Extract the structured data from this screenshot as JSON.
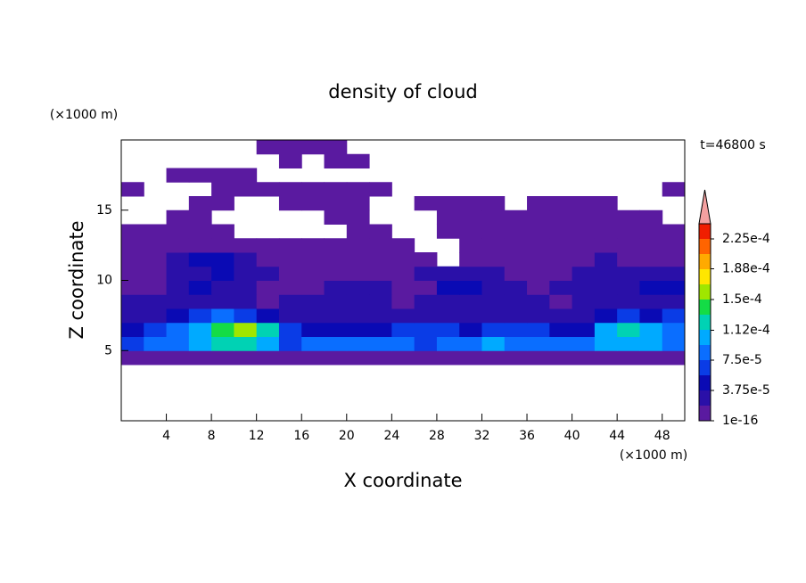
{
  "chart_data": {
    "type": "contour",
    "title": "density of cloud",
    "x_label": "X coordinate",
    "y_label": "Z coordinate",
    "x_unit": "(×1000 m)",
    "y_unit": "(×1000 m)",
    "time_label": "t=46800 s",
    "xlim": [
      0,
      50
    ],
    "ylim": [
      0,
      20
    ],
    "xticks": [
      4,
      8,
      12,
      16,
      20,
      24,
      28,
      32,
      36,
      40,
      44,
      48
    ],
    "yticks": [
      5,
      10,
      15
    ],
    "x": [
      1,
      3,
      5,
      7,
      9,
      11,
      13,
      15,
      17,
      19,
      21,
      23,
      25,
      27,
      29,
      31,
      33,
      35,
      37,
      39,
      41,
      43,
      45,
      47,
      49
    ],
    "y": [
      4.5,
      5.5,
      6.5,
      7.5,
      8.5,
      9.5,
      10.5,
      11.5,
      12.5,
      13.5,
      14.5,
      15.5,
      16.5,
      17.5,
      18.5,
      19.5
    ],
    "values": [
      [
        1e-16,
        1e-16,
        1e-16,
        1e-16,
        1e-16,
        1e-16,
        1e-16,
        1e-16,
        1e-16,
        1e-16,
        1e-16,
        1e-16,
        1e-16,
        1e-16,
        1e-16,
        1e-16,
        1e-16,
        1e-16,
        1e-16,
        1e-16,
        1e-16,
        1e-16,
        1e-16,
        1e-16,
        1e-16
      ],
      [
        5.7e-05,
        7.6e-05,
        7.6e-05,
        9.5e-05,
        0.000114,
        0.000114,
        9.5e-05,
        5.7e-05,
        7.6e-05,
        7.6e-05,
        7.6e-05,
        7.6e-05,
        7.6e-05,
        5.7e-05,
        7.6e-05,
        7.6e-05,
        9.5e-05,
        7.6e-05,
        7.6e-05,
        7.6e-05,
        7.6e-05,
        9.5e-05,
        9.5e-05,
        9.5e-05,
        7.6e-05
      ],
      [
        3.8e-05,
        5.7e-05,
        7.6e-05,
        9.5e-05,
        0.000133,
        0.000152,
        0.000114,
        5.7e-05,
        3.8e-05,
        3.8e-05,
        3.8e-05,
        3.8e-05,
        5.7e-05,
        5.7e-05,
        5.7e-05,
        3.8e-05,
        5.7e-05,
        5.7e-05,
        5.7e-05,
        3.8e-05,
        3.8e-05,
        9.5e-05,
        0.000114,
        9.5e-05,
        7.6e-05
      ],
      [
        1.9e-05,
        1.9e-05,
        3.8e-05,
        5.7e-05,
        7.6e-05,
        5.7e-05,
        3.8e-05,
        1.9e-05,
        1.9e-05,
        1.9e-05,
        1.9e-05,
        1.9e-05,
        1.9e-05,
        1.9e-05,
        1.9e-05,
        1.9e-05,
        1.9e-05,
        1.9e-05,
        1.9e-05,
        1.9e-05,
        1.9e-05,
        3.8e-05,
        5.7e-05,
        3.8e-05,
        5.7e-05
      ],
      [
        1.9e-05,
        1.9e-05,
        1.9e-05,
        1.9e-05,
        1.9e-05,
        1.9e-05,
        1e-16,
        1.9e-05,
        1.9e-05,
        1.9e-05,
        1.9e-05,
        1.9e-05,
        1e-16,
        1.9e-05,
        1.9e-05,
        1.9e-05,
        1.9e-05,
        1.9e-05,
        1.9e-05,
        1e-16,
        1.9e-05,
        1.9e-05,
        1.9e-05,
        1.9e-05,
        1.9e-05
      ],
      [
        1e-16,
        1e-16,
        1.9e-05,
        3.8e-05,
        1.9e-05,
        1.9e-05,
        1e-16,
        1e-16,
        1e-16,
        1.9e-05,
        1.9e-05,
        1.9e-05,
        1e-16,
        1e-16,
        3.8e-05,
        3.8e-05,
        1.9e-05,
        1.9e-05,
        1e-16,
        1.9e-05,
        1.9e-05,
        1.9e-05,
        1.9e-05,
        3.8e-05,
        3.8e-05
      ],
      [
        1e-16,
        1e-16,
        1.9e-05,
        1.9e-05,
        3.8e-05,
        1.9e-05,
        1.9e-05,
        1e-16,
        1e-16,
        1e-16,
        1e-16,
        1e-16,
        1e-16,
        1.9e-05,
        1.9e-05,
        1.9e-05,
        1.9e-05,
        1e-16,
        1e-16,
        1e-16,
        1.9e-05,
        1.9e-05,
        1.9e-05,
        1.9e-05,
        1.9e-05
      ],
      [
        1e-16,
        1e-16,
        1.9e-05,
        3.8e-05,
        3.8e-05,
        1.9e-05,
        1e-16,
        1e-16,
        1e-16,
        1e-16,
        1e-16,
        1e-16,
        1e-16,
        1e-16,
        null,
        1e-16,
        1e-16,
        1e-16,
        1e-16,
        1e-16,
        1e-16,
        1.9e-05,
        1e-16,
        1e-16,
        1e-16
      ],
      [
        1e-16,
        1e-16,
        1e-16,
        1e-16,
        1e-16,
        1e-16,
        1e-16,
        1e-16,
        1e-16,
        1e-16,
        1e-16,
        1e-16,
        1e-16,
        null,
        null,
        1e-16,
        1e-16,
        1e-16,
        1e-16,
        1e-16,
        1e-16,
        1e-16,
        1e-16,
        1e-16,
        1e-16
      ],
      [
        1e-16,
        1e-16,
        1e-16,
        1e-16,
        1e-16,
        null,
        null,
        null,
        null,
        null,
        1e-16,
        1e-16,
        null,
        null,
        1e-16,
        1e-16,
        1e-16,
        1e-16,
        1e-16,
        1e-16,
        1e-16,
        1e-16,
        1e-16,
        1e-16,
        1e-16
      ],
      [
        null,
        null,
        1e-16,
        1e-16,
        null,
        null,
        null,
        null,
        null,
        1e-16,
        1e-16,
        null,
        null,
        null,
        1e-16,
        1e-16,
        1e-16,
        1e-16,
        1e-16,
        1e-16,
        1e-16,
        1e-16,
        1e-16,
        1e-16,
        null
      ],
      [
        null,
        null,
        null,
        1e-16,
        1e-16,
        null,
        null,
        1e-16,
        1e-16,
        1e-16,
        1e-16,
        null,
        null,
        1e-16,
        1e-16,
        1e-16,
        1e-16,
        null,
        1e-16,
        1e-16,
        1e-16,
        1e-16,
        null,
        null,
        null
      ],
      [
        1e-16,
        null,
        null,
        null,
        1e-16,
        1e-16,
        1e-16,
        1e-16,
        1e-16,
        1e-16,
        1e-16,
        1e-16,
        null,
        null,
        null,
        null,
        null,
        null,
        null,
        null,
        null,
        null,
        null,
        null,
        1e-16
      ],
      [
        null,
        null,
        1e-16,
        1e-16,
        1e-16,
        1e-16,
        null,
        null,
        null,
        null,
        null,
        null,
        null,
        null,
        null,
        null,
        null,
        null,
        null,
        null,
        null,
        null,
        null,
        null,
        null
      ],
      [
        null,
        null,
        null,
        null,
        null,
        null,
        null,
        1e-16,
        null,
        1e-16,
        1e-16,
        null,
        null,
        null,
        null,
        null,
        null,
        null,
        null,
        null,
        null,
        null,
        null,
        null,
        null
      ],
      [
        null,
        null,
        null,
        null,
        null,
        null,
        1e-16,
        1e-16,
        1e-16,
        1e-16,
        null,
        null,
        null,
        null,
        null,
        null,
        null,
        null,
        null,
        null,
        null,
        null,
        null,
        null,
        null
      ]
    ],
    "colorbar": {
      "levels": [
        1e-16,
        1.875e-05,
        3.75e-05,
        5.625e-05,
        7.5e-05,
        9.375e-05,
        0.0001125,
        0.00013125,
        0.00015,
        0.00016875,
        0.0001875,
        0.00020625,
        0.000225,
        0.00024375
      ],
      "colors": [
        "#5a1aa0",
        "#2a10a8",
        "#0a0ab4",
        "#0a3ce6",
        "#0a6eff",
        "#00aaff",
        "#00d2b4",
        "#14dc46",
        "#a0e600",
        "#ffe600",
        "#ffaa00",
        "#ff6400",
        "#f01e00"
      ],
      "extend_color": "#f4a0a0",
      "ticks": [
        1e-16,
        {
          "value": 3.75e-05,
          "label": "3.75e-5"
        },
        {
          "value": 7.5e-05,
          "label": "7.5e-5"
        },
        {
          "value": 0.000112,
          "label": "1.12e-4"
        },
        {
          "value": 0.00015,
          "label": "1.5e-4"
        },
        {
          "value": 0.000188,
          "label": "1.88e-4"
        },
        {
          "value": 0.000225,
          "label": "2.25e-4"
        }
      ]
    }
  }
}
